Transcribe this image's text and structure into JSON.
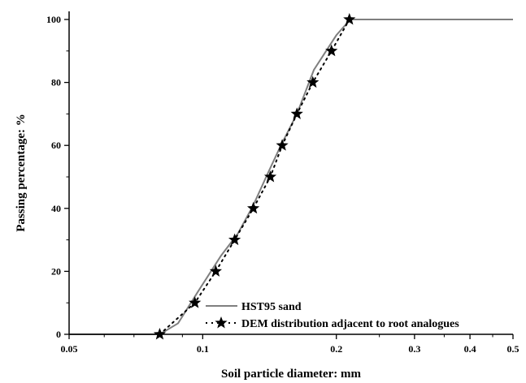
{
  "chart_data": {
    "type": "line",
    "title": "",
    "xlabel": "Soil particle diameter: mm",
    "ylabel": "Passing percentage: %",
    "x_scale": "log",
    "xlim": [
      0.05,
      0.5
    ],
    "ylim": [
      0,
      100
    ],
    "x_ticks": [
      {
        "value": 0.05,
        "label": "0.05"
      },
      {
        "value": 0.1,
        "label": "0.1"
      },
      {
        "value": 0.2,
        "label": "0.2"
      },
      {
        "value": 0.3,
        "label": "0.3"
      },
      {
        "value": 0.4,
        "label": "0.4"
      },
      {
        "value": 0.5,
        "label": "0.5"
      }
    ],
    "y_ticks": [
      {
        "value": 0,
        "label": "0"
      },
      {
        "value": 20,
        "label": "20"
      },
      {
        "value": 40,
        "label": "40"
      },
      {
        "value": 60,
        "label": "60"
      },
      {
        "value": 80,
        "label": "80"
      },
      {
        "value": 100,
        "label": "100"
      }
    ],
    "grid": false,
    "legend_position": "bottom-right",
    "series": [
      {
        "name": "HST95 sand",
        "style": "solid",
        "color": "#7f7f7f",
        "x": [
          0.05,
          0.08,
          0.088,
          0.098,
          0.11,
          0.12,
          0.13,
          0.14,
          0.15,
          0.163,
          0.178,
          0.2,
          0.215,
          0.3,
          0.4,
          0.5
        ],
        "y": [
          0,
          0,
          3.5,
          14,
          25,
          32,
          41,
          51,
          60,
          70,
          84,
          95,
          100,
          100,
          100,
          100
        ]
      },
      {
        "name": "DEM distribution adjacent to root analogues",
        "style": "dotted-with-star-markers",
        "color": "#000000",
        "x": [
          0.08,
          0.096,
          0.107,
          0.118,
          0.13,
          0.142,
          0.151,
          0.163,
          0.177,
          0.195,
          0.214
        ],
        "y": [
          0,
          10,
          20,
          30,
          40,
          50,
          60,
          70,
          80,
          90,
          100
        ]
      }
    ]
  }
}
